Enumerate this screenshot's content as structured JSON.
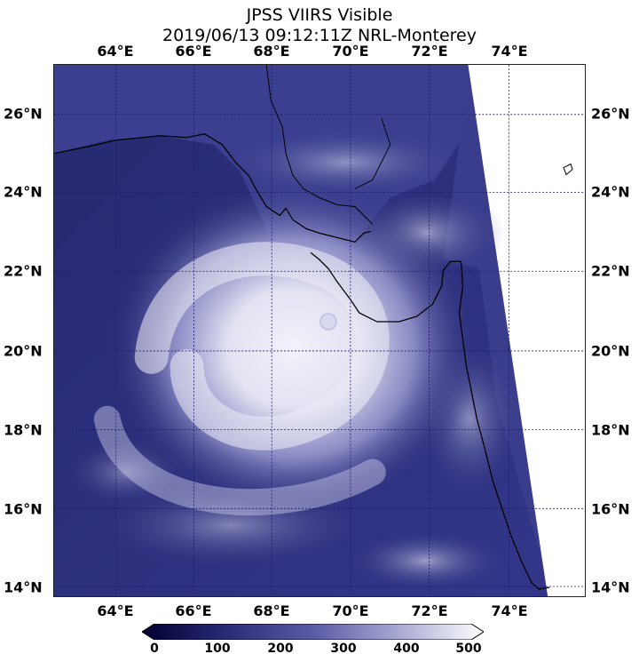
{
  "title": {
    "line1": "JPSS VIIRS Visible",
    "line2": "2019/06/13 09:12:11Z NRL-Monterey"
  },
  "longitude_labels": [
    "64°E",
    "66°E",
    "68°E",
    "70°E",
    "72°E",
    "74°E"
  ],
  "latitude_labels": [
    "26°N",
    "24°N",
    "22°N",
    "20°N",
    "18°N",
    "16°N",
    "14°N"
  ],
  "colorbar": {
    "labels": [
      "0",
      "100",
      "200",
      "300",
      "400",
      "500"
    ],
    "range": [
      0,
      500
    ],
    "colors": [
      "#000033",
      "#2b2b78",
      "#5a5aa6",
      "#a8a8d4",
      "#ffffff"
    ]
  },
  "colors": {
    "ocean": "#2a2c7a",
    "cloud": "#e8e8f5",
    "land": "#3a3d8c",
    "no_data": "#ffffff",
    "grid": "#1a1a66",
    "coastline": "#000000"
  }
}
